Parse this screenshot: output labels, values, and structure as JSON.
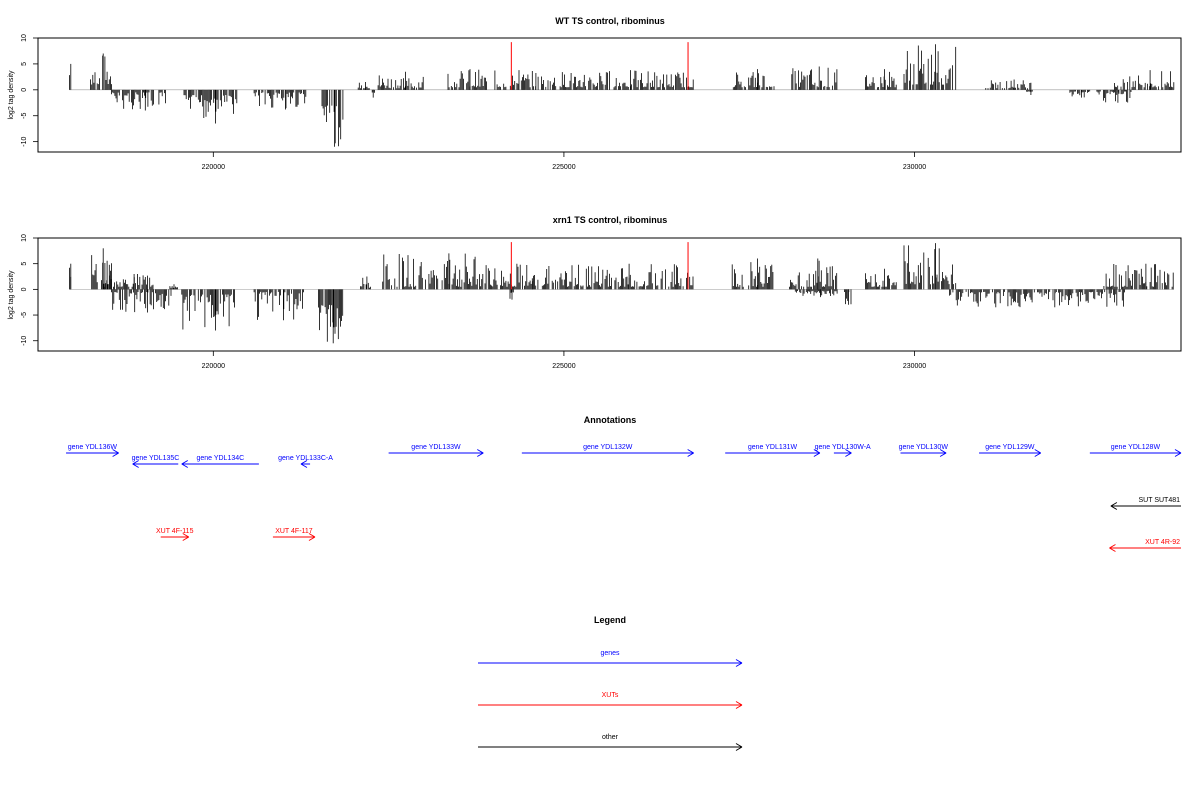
{
  "chart_data": [
    {
      "type": "bar",
      "title": "WT TS control, ribominus",
      "ylabel": "log2 tag density",
      "xlabel": "",
      "ylim": [
        -12,
        10
      ],
      "yticks": [
        10,
        5,
        0,
        -5,
        -10
      ],
      "xlim": [
        217500,
        233800
      ],
      "xticks": [
        220000,
        225000,
        230000
      ],
      "grid": false,
      "bar_color": "#000000",
      "marker_color": "#ff0000",
      "markers": [
        {
          "x": 224250,
          "y": 9.2
        },
        {
          "x": 226770,
          "y": 9.2
        }
      ],
      "segments": [
        {
          "x0": 217950,
          "x1": 217980,
          "min": 2,
          "max": 5,
          "sign": 1
        },
        {
          "x0": 218250,
          "x1": 218550,
          "min": 1,
          "max": 7,
          "sign": 1
        },
        {
          "x0": 218550,
          "x1": 219350,
          "min": 0.5,
          "max": 4,
          "sign": -1
        },
        {
          "x0": 219550,
          "x1": 220350,
          "min": 1,
          "max": 6.5,
          "sign": -1
        },
        {
          "x0": 220550,
          "x1": 221350,
          "min": 0.5,
          "max": 3.8,
          "sign": -1
        },
        {
          "x0": 221550,
          "x1": 221850,
          "min": 3,
          "max": 11,
          "sign": -1
        },
        {
          "x0": 222050,
          "x1": 222250,
          "min": 0.3,
          "max": 1.5,
          "sign": 1
        },
        {
          "x0": 222250,
          "x1": 222300,
          "min": 0.5,
          "max": 1.5,
          "sign": -1
        },
        {
          "x0": 222350,
          "x1": 223000,
          "min": 0.3,
          "max": 3.5,
          "sign": 1
        },
        {
          "x0": 223300,
          "x1": 223900,
          "min": 0.5,
          "max": 4,
          "sign": 1
        },
        {
          "x0": 224000,
          "x1": 224600,
          "min": 0.5,
          "max": 3.8,
          "sign": 1
        },
        {
          "x0": 224600,
          "x1": 226850,
          "min": 0.5,
          "max": 3.8,
          "sign": 1
        },
        {
          "x0": 227400,
          "x1": 228000,
          "min": 0.5,
          "max": 4,
          "sign": 1
        },
        {
          "x0": 228250,
          "x1": 228900,
          "min": 0.5,
          "max": 4.5,
          "sign": 1
        },
        {
          "x0": 229300,
          "x1": 229750,
          "min": 0.5,
          "max": 4,
          "sign": 1
        },
        {
          "x0": 229850,
          "x1": 230600,
          "min": 1,
          "max": 8.8,
          "sign": 1
        },
        {
          "x0": 231000,
          "x1": 231700,
          "min": 0.3,
          "max": 2,
          "sign": 1
        },
        {
          "x0": 231600,
          "x1": 231700,
          "min": 0.3,
          "max": 1,
          "sign": -1
        },
        {
          "x0": 232200,
          "x1": 232500,
          "min": 0.3,
          "max": 1.5,
          "sign": -1
        },
        {
          "x0": 232600,
          "x1": 233100,
          "min": 0.3,
          "max": 2.5,
          "sign": -1
        },
        {
          "x0": 232850,
          "x1": 233700,
          "min": 0.5,
          "max": 3.8,
          "sign": 1
        }
      ]
    },
    {
      "type": "bar",
      "title": "xrn1 TS control, ribominus",
      "ylabel": "log2 tag density",
      "xlabel": "",
      "ylim": [
        -12,
        10
      ],
      "yticks": [
        10,
        5,
        0,
        -5,
        -10
      ],
      "xlim": [
        217500,
        233800
      ],
      "xticks": [
        220000,
        225000,
        230000
      ],
      "grid": false,
      "bar_color": "#000000",
      "marker_color": "#ff0000",
      "markers": [
        {
          "x": 224250,
          "y": 9.2
        },
        {
          "x": 226770,
          "y": 9.2
        }
      ],
      "segments": [
        {
          "x0": 217950,
          "x1": 217980,
          "min": 2,
          "max": 5,
          "sign": 1
        },
        {
          "x0": 218250,
          "x1": 218550,
          "min": 1,
          "max": 8,
          "sign": 1
        },
        {
          "x0": 218450,
          "x1": 219150,
          "min": 0.5,
          "max": 3,
          "sign": 1
        },
        {
          "x0": 218550,
          "x1": 219400,
          "min": 0.5,
          "max": 4.5,
          "sign": -1
        },
        {
          "x0": 219350,
          "x1": 219500,
          "min": 0.3,
          "max": 1,
          "sign": 1
        },
        {
          "x0": 219550,
          "x1": 220350,
          "min": 1,
          "max": 8,
          "sign": -1
        },
        {
          "x0": 220550,
          "x1": 221300,
          "min": 0.5,
          "max": 6,
          "sign": -1
        },
        {
          "x0": 221500,
          "x1": 221850,
          "min": 3,
          "max": 10.5,
          "sign": -1
        },
        {
          "x0": 222100,
          "x1": 222250,
          "min": 0.3,
          "max": 2.5,
          "sign": 1
        },
        {
          "x0": 222400,
          "x1": 224000,
          "min": 0.5,
          "max": 7,
          "sign": 1
        },
        {
          "x0": 224000,
          "x1": 224550,
          "min": 0.5,
          "max": 5,
          "sign": 1
        },
        {
          "x0": 224200,
          "x1": 224300,
          "min": 0.5,
          "max": 2,
          "sign": -1
        },
        {
          "x0": 224550,
          "x1": 226850,
          "min": 0.5,
          "max": 5,
          "sign": 1
        },
        {
          "x0": 227400,
          "x1": 228000,
          "min": 0.5,
          "max": 6,
          "sign": 1
        },
        {
          "x0": 228200,
          "x1": 228900,
          "min": 0.5,
          "max": 6,
          "sign": 1
        },
        {
          "x0": 228300,
          "x1": 228900,
          "min": 0.3,
          "max": 1.5,
          "sign": -1
        },
        {
          "x0": 229000,
          "x1": 229100,
          "min": 0.5,
          "max": 3,
          "sign": -1
        },
        {
          "x0": 229300,
          "x1": 229750,
          "min": 0.5,
          "max": 4,
          "sign": 1
        },
        {
          "x0": 229850,
          "x1": 230600,
          "min": 1,
          "max": 9,
          "sign": 1
        },
        {
          "x0": 230500,
          "x1": 233000,
          "min": 0.5,
          "max": 3.5,
          "sign": -1
        },
        {
          "x0": 232700,
          "x1": 233700,
          "min": 0.5,
          "max": 5,
          "sign": 1
        }
      ]
    }
  ],
  "annotations": {
    "title": "Annotations",
    "items": [
      {
        "label": "gene YDL136W",
        "x0": 217900,
        "x1": 218650,
        "dir": "right",
        "row": 0,
        "color": "#0000ff"
      },
      {
        "label": "gene YDL135C",
        "x0": 218850,
        "x1": 219500,
        "dir": "left",
        "row": 1,
        "color": "#0000ff"
      },
      {
        "label": "gene YDL134C",
        "x0": 219550,
        "x1": 220650,
        "dir": "left",
        "row": 1,
        "color": "#0000ff"
      },
      {
        "label": "gene YDL133C-A",
        "x0": 221250,
        "x1": 221380,
        "dir": "left",
        "row": 1,
        "color": "#0000ff"
      },
      {
        "label": "gene YDL133W",
        "x0": 222500,
        "x1": 223850,
        "dir": "right",
        "row": 0,
        "color": "#0000ff"
      },
      {
        "label": "gene YDL132W",
        "x0": 224400,
        "x1": 226850,
        "dir": "right",
        "row": 0,
        "color": "#0000ff"
      },
      {
        "label": "gene YDL131W",
        "x0": 227300,
        "x1": 228650,
        "dir": "right",
        "row": 0,
        "color": "#0000ff"
      },
      {
        "label": "gene YDL130W-A",
        "x0": 228850,
        "x1": 229100,
        "dir": "right",
        "row": 0,
        "color": "#0000ff"
      },
      {
        "label": "gene YDL130W",
        "x0": 229800,
        "x1": 230450,
        "dir": "right",
        "row": 0,
        "color": "#0000ff"
      },
      {
        "label": "gene YDL129W",
        "x0": 230920,
        "x1": 231800,
        "dir": "right",
        "row": 0,
        "color": "#0000ff"
      },
      {
        "label": "gene YDL128W",
        "x0": 232500,
        "x1": 233800,
        "dir": "right",
        "row": 0,
        "color": "#0000ff"
      },
      {
        "label": "SUT SUT481",
        "x0": 232800,
        "x1": 233800,
        "dir": "left",
        "row": 2,
        "color": "#000000"
      },
      {
        "label": "XUT 4F-115",
        "x0": 219250,
        "x1": 219650,
        "dir": "right",
        "row": 3,
        "color": "#ff0000"
      },
      {
        "label": "XUT 4F-117",
        "x0": 220850,
        "x1": 221450,
        "dir": "right",
        "row": 3,
        "color": "#ff0000"
      },
      {
        "label": "XUT 4R-92",
        "x0": 232780,
        "x1": 233800,
        "dir": "left",
        "row": 4,
        "color": "#ff0000"
      }
    ]
  },
  "legend": {
    "title": "Legend",
    "items": [
      {
        "label": "genes",
        "color": "#0000ff"
      },
      {
        "label": "XUTs",
        "color": "#ff0000"
      },
      {
        "label": "other",
        "color": "#000000"
      }
    ]
  }
}
